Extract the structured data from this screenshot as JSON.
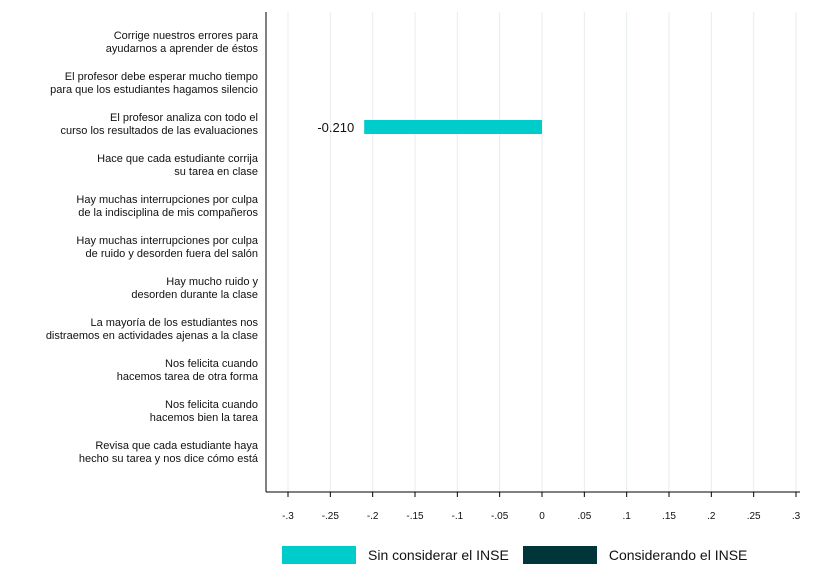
{
  "chart_data": {
    "type": "bar",
    "orientation": "horizontal",
    "categories": [
      [
        "Corrige nuestros errores para",
        "ayudarnos a aprender de éstos"
      ],
      [
        "El profesor debe esperar mucho tiempo",
        "para que los estudiantes hagamos silencio"
      ],
      [
        "El profesor analiza con todo el",
        "curso los resultados de las evaluaciones"
      ],
      [
        "Hace que cada estudiante corrija",
        "su tarea en clase"
      ],
      [
        "Hay muchas interrupciones por culpa",
        "de la indisciplina de mis compañeros"
      ],
      [
        "Hay muchas interrupciones por culpa",
        "de ruido y desorden fuera del salón"
      ],
      [
        "Hay mucho ruido y",
        "desorden durante la clase"
      ],
      [
        "La mayoría de los estudiantes nos",
        "distraemos en actividades ajenas a la clase"
      ],
      [
        "Nos felicita cuando",
        "hacemos tarea de otra forma"
      ],
      [
        "Nos felicita cuando",
        "hacemos bien la tarea"
      ],
      [
        "Revisa que cada estudiante haya",
        "hecho su tarea y nos dice cómo está"
      ]
    ],
    "series": [
      {
        "name": "Sin considerar el INSE",
        "color": "#00CCCC",
        "values": [
          null,
          null,
          -0.21,
          null,
          null,
          null,
          null,
          null,
          null,
          null,
          null
        ],
        "labels": [
          "",
          "",
          "-0.210",
          "",
          "",
          "",
          "",
          "",
          "",
          "",
          ""
        ]
      },
      {
        "name": "Considerando el INSE",
        "color": "#00363A",
        "values": [
          null,
          null,
          null,
          null,
          null,
          null,
          null,
          null,
          null,
          null,
          null
        ],
        "labels": [
          "",
          "",
          "",
          "",
          "",
          "",
          "",
          "",
          "",
          "",
          ""
        ]
      }
    ],
    "xlim": [
      -0.3,
      0.3
    ],
    "xticks": [
      -0.3,
      -0.25,
      -0.2,
      -0.15,
      -0.1,
      -0.05,
      0,
      0.05,
      0.1,
      0.15,
      0.2,
      0.25,
      0.3
    ],
    "xtick_labels": [
      "-.3",
      "-.25",
      "-.2",
      "-.15",
      "-.1",
      "-.05",
      "0",
      ".05",
      ".1",
      ".15",
      ".2",
      ".25",
      ".3"
    ],
    "grid": true,
    "legend_position": "bottom"
  }
}
